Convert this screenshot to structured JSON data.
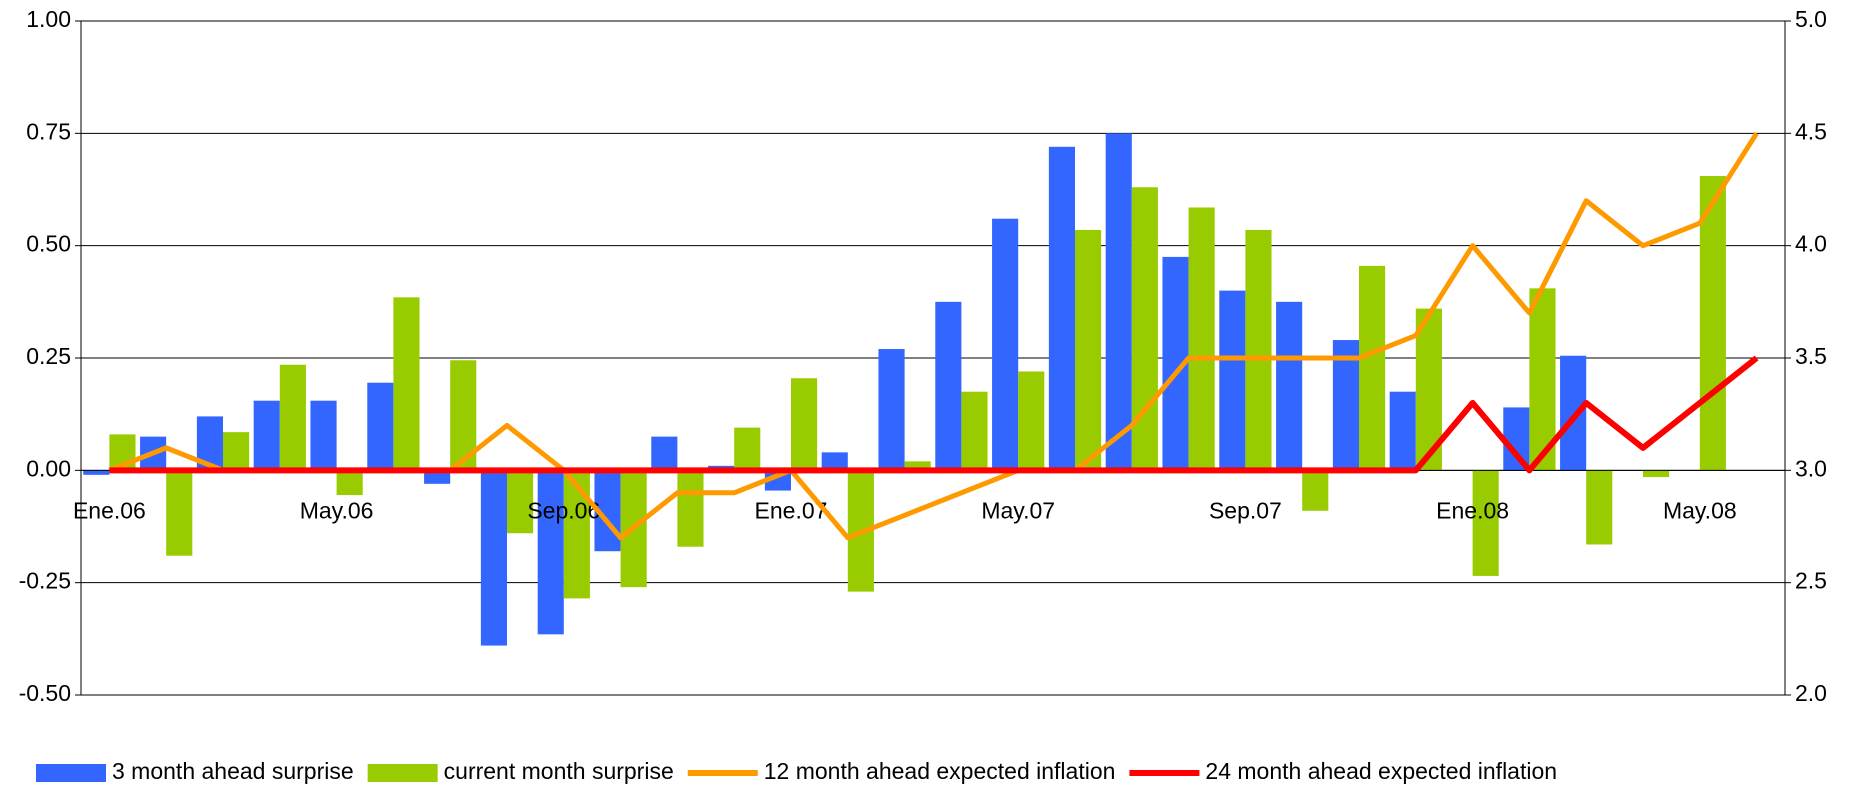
{
  "chart_data": {
    "type": "bar-line",
    "categories": [
      "Ene.06",
      null,
      null,
      null,
      "May.06",
      null,
      null,
      null,
      "Sep.06",
      null,
      null,
      null,
      "Ene.07",
      null,
      null,
      null,
      "May.07",
      null,
      null,
      null,
      "Sep.07",
      null,
      null,
      null,
      "Ene.08",
      null,
      null,
      null,
      "May.08",
      null
    ],
    "series": [
      {
        "name": "3 month ahead surprise",
        "type": "bar",
        "color": "#3366ff",
        "values": [
          -0.01,
          0.075,
          0.12,
          0.155,
          0.155,
          0.195,
          -0.03,
          -0.39,
          -0.365,
          -0.18,
          0.075,
          0.01,
          -0.045,
          0.04,
          0.27,
          0.375,
          0.56,
          0.72,
          0.75,
          0.475,
          0.4,
          0.375,
          0.29,
          0.175,
          null,
          0.14,
          0.255,
          null,
          null,
          null
        ]
      },
      {
        "name": "current month surprise",
        "type": "bar",
        "color": "#99cc00",
        "values": [
          0.08,
          -0.19,
          0.085,
          0.235,
          -0.055,
          0.385,
          0.245,
          -0.14,
          -0.285,
          -0.26,
          -0.17,
          0.095,
          0.205,
          -0.27,
          0.02,
          0.175,
          0.22,
          0.535,
          0.63,
          0.585,
          0.535,
          -0.09,
          0.455,
          0.36,
          -0.235,
          0.405,
          -0.165,
          -0.015,
          0.655,
          null
        ]
      },
      {
        "name": "12 month ahead expected inflation",
        "type": "line",
        "axis": "y2",
        "color": "#ff9900",
        "values": [
          3.0,
          3.1,
          3.0,
          3.0,
          3.0,
          3.0,
          3.0,
          3.2,
          3.0,
          2.7,
          2.9,
          2.9,
          3.0,
          2.7,
          2.8,
          2.9,
          3.0,
          3.0,
          3.2,
          3.5,
          3.5,
          3.5,
          3.5,
          3.6,
          4.0,
          3.7,
          4.2,
          4.0,
          4.1,
          4.5
        ]
      },
      {
        "name": "24 month ahead expected inflation",
        "type": "line",
        "axis": "y2",
        "color": "#ff0000",
        "values": [
          3.0,
          3.0,
          3.0,
          3.0,
          3.0,
          3.0,
          3.0,
          3.0,
          3.0,
          3.0,
          3.0,
          3.0,
          3.0,
          3.0,
          3.0,
          3.0,
          3.0,
          3.0,
          3.0,
          3.0,
          3.0,
          3.0,
          3.0,
          3.0,
          3.3,
          3.0,
          3.3,
          3.1,
          3.3,
          3.5
        ]
      }
    ],
    "ylim": [
      -0.5,
      1.0
    ],
    "yticks": [
      {
        "value": -0.5,
        "label": "-0.50"
      },
      -0.25,
      {
        "value": 0,
        "label": "0.00"
      },
      0.25,
      {
        "value": 0.5,
        "label": "0.50"
      },
      0.75,
      {
        "value": 1.0,
        "label": "1.00"
      }
    ],
    "y2lim": [
      2.0,
      5.0
    ],
    "y2ticks": [
      {
        "value": 2.0,
        "label": "2.0"
      },
      2.5,
      {
        "value": 3.0,
        "label": "3.0"
      },
      3.5,
      {
        "value": 4.0,
        "label": "4.0"
      },
      4.5,
      {
        "value": 5.0,
        "label": "5.0"
      }
    ],
    "grid": true,
    "legend": "bottom"
  }
}
